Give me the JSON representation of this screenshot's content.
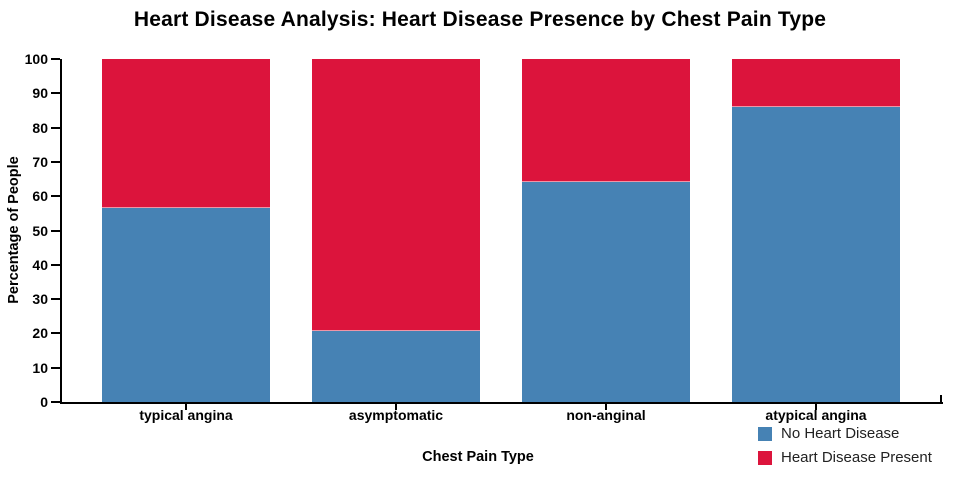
{
  "chart_data": {
    "type": "bar",
    "stacked": true,
    "normalized_percent": true,
    "title": "Heart Disease Analysis: Heart Disease Presence by Chest Pain Type",
    "xlabel": "Chest Pain Type",
    "ylabel": "Percentage of People",
    "categories": [
      "typical angina",
      "asymptomatic",
      "non-anginal",
      "atypical angina"
    ],
    "series": [
      {
        "name": "No Heart Disease",
        "color": "#4682B4",
        "values": [
          56.5,
          20.8,
          64.0,
          86.0
        ]
      },
      {
        "name": "Heart Disease Present",
        "color": "#DC143C",
        "values": [
          43.5,
          79.2,
          36.0,
          14.0
        ]
      }
    ],
    "ylim": [
      0,
      100
    ],
    "yticks": [
      0,
      10,
      20,
      30,
      40,
      50,
      60,
      70,
      80,
      90,
      100
    ],
    "legend_position": "bottom-right",
    "grid": false,
    "axis_color": "#000000",
    "background_color": "#ffffff"
  }
}
